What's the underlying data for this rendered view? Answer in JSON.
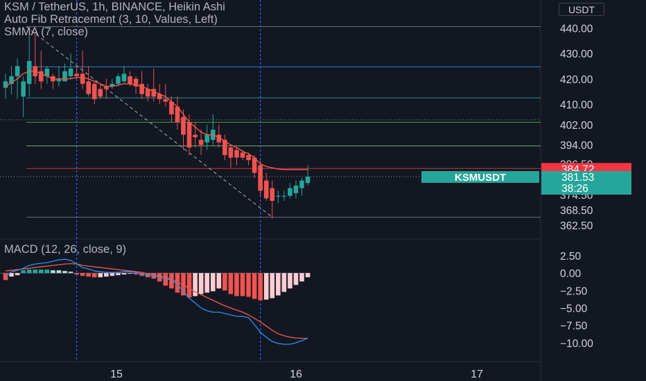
{
  "header": {
    "title": "KSM / TetherUS, 1h, BINANCE, Heikin Ashi",
    "fib_legend": "Auto Fib Retracement (3, 10, Values, Left)",
    "smma_legend": "SMMA (7, close)",
    "macd_legend": "MACD (12, 26, close, 9)",
    "currency": "USDT"
  },
  "colors": {
    "background": "#131722",
    "up": "#26a69a",
    "down": "#ef5350",
    "smma": "#f05a4a",
    "macd_line": "#2196f3",
    "signal_line": "#f05a4a",
    "hist_up_strong": "#26a69a",
    "hist_up_weak": "#b2dfdb",
    "hist_down_strong": "#ef5350",
    "hist_down_weak": "#ffcdd2"
  },
  "price_axis": {
    "labels": [
      "440.00",
      "430.00",
      "420.00",
      "410.00",
      "402.00",
      "394.00",
      "386.50",
      "374.50",
      "368.50",
      "362.50"
    ],
    "last_price_label": "381.53",
    "last_price_countdown": "38:26",
    "symbol_badge": "KSMUSDT",
    "level_label": "384.72"
  },
  "macd_axis": {
    "labels": [
      "2.50",
      "0.00",
      "−2.50",
      "−5.00",
      "−7.50",
      "−10.00"
    ]
  },
  "time_axis": {
    "labels": [
      "15",
      "16",
      "17"
    ]
  },
  "chart_data": [
    {
      "type": "candlestick",
      "title": "KSM / TetherUS, 1h, BINANCE, Heikin Ashi",
      "ylim": [
        360,
        442
      ],
      "candles": [
        [
          416.5,
          419,
          412,
          422,
          "up"
        ],
        [
          418,
          421,
          414,
          425,
          "up"
        ],
        [
          421,
          425,
          412,
          428,
          "up"
        ],
        [
          413,
          419,
          405,
          421,
          "up"
        ],
        [
          418,
          427,
          413,
          437,
          "up"
        ],
        [
          425,
          421,
          418,
          438,
          "down"
        ],
        [
          423,
          419,
          416,
          431,
          "down"
        ],
        [
          421,
          424,
          418,
          425,
          "up"
        ],
        [
          421,
          419,
          416,
          422,
          "down"
        ],
        [
          419,
          420,
          417,
          425,
          "up"
        ],
        [
          419,
          423,
          419,
          426,
          "up"
        ],
        [
          421,
          424,
          420,
          430,
          "up"
        ],
        [
          422,
          421,
          420,
          425,
          "down"
        ],
        [
          422,
          418,
          416,
          431,
          "down"
        ],
        [
          419,
          414,
          413,
          425,
          "down"
        ],
        [
          418,
          412,
          410,
          419,
          "down"
        ],
        [
          416,
          413,
          412,
          418,
          "down"
        ],
        [
          417,
          416,
          412,
          420,
          "down"
        ],
        [
          417,
          418,
          416,
          420,
          "up"
        ],
        [
          418,
          421,
          417,
          422,
          "up"
        ],
        [
          419,
          422,
          418,
          425,
          "up"
        ],
        [
          421,
          418,
          417,
          423,
          "down"
        ],
        [
          420,
          417,
          414,
          421,
          "down"
        ],
        [
          418,
          414,
          412,
          423,
          "down"
        ],
        [
          416,
          413,
          411,
          418,
          "down"
        ],
        [
          416,
          413,
          411,
          424,
          "down"
        ],
        [
          414,
          412,
          410,
          418,
          "down"
        ],
        [
          412,
          411,
          409,
          418,
          "down"
        ],
        [
          411,
          406,
          403,
          413,
          "down"
        ],
        [
          409,
          403,
          400,
          413,
          "down"
        ],
        [
          405,
          398,
          392,
          408,
          "down"
        ],
        [
          403,
          393,
          390,
          406,
          "down"
        ],
        [
          398,
          397,
          393,
          403,
          "down"
        ],
        [
          396,
          394,
          390,
          400,
          "down"
        ],
        [
          395,
          398,
          392,
          402,
          "up"
        ],
        [
          396,
          400,
          394,
          406,
          "up"
        ],
        [
          398,
          395,
          393,
          402,
          "down"
        ],
        [
          396,
          390,
          388,
          398,
          "down"
        ],
        [
          393,
          389,
          385,
          394,
          "down"
        ],
        [
          392,
          389,
          386,
          393,
          "down"
        ],
        [
          391,
          389,
          388,
          392,
          "down"
        ],
        [
          390,
          388,
          386,
          391,
          "down"
        ],
        [
          389,
          383,
          381,
          390,
          "down"
        ],
        [
          386,
          376,
          374,
          388,
          "down"
        ],
        [
          380,
          373,
          372,
          383,
          "down"
        ],
        [
          377,
          372,
          365,
          380,
          "down"
        ],
        [
          374,
          374,
          371,
          376,
          "up"
        ],
        [
          374,
          374,
          372,
          376,
          "up"
        ],
        [
          374,
          377,
          373,
          379,
          "up"
        ],
        [
          375,
          378,
          373,
          380,
          "up"
        ],
        [
          377,
          380,
          374,
          381,
          "up"
        ],
        [
          379,
          381.53,
          378,
          386,
          "up"
        ]
      ],
      "smma": [
        417,
        418.5,
        420,
        422,
        423,
        423,
        422,
        421,
        420,
        420,
        420,
        420,
        420.5,
        420.5,
        420,
        419,
        418,
        417,
        417,
        417.5,
        418,
        418,
        417.5,
        417,
        416,
        415,
        414,
        413,
        411,
        409,
        406,
        403,
        401,
        399,
        398,
        398,
        397,
        395.5,
        394,
        393,
        391.5,
        390.5,
        389,
        386.5,
        385.5,
        385,
        384.5,
        384.3,
        384.3,
        384.3,
        384.3,
        384.3
      ],
      "fib_levels": [
        440.5,
        424.7,
        412.5,
        402.9,
        393.6,
        384.72,
        365.6
      ],
      "fib_colors": [
        "#787b86",
        "#2196f3",
        "#26a69a",
        "#4caf50",
        "#81c784",
        "#f23645",
        "#787b86"
      ],
      "last_price": 381.53
    },
    {
      "type": "macd",
      "title": "MACD (12, 26, close, 9)",
      "ylim": [
        -11.5,
        3.2
      ],
      "macd": [
        -0.5,
        0.2,
        0.4,
        0.7,
        1.1,
        1.3,
        1.4,
        1.5,
        1.7,
        1.9,
        2.0,
        1.8,
        1.3,
        0.8,
        0.6,
        0.3,
        0.2,
        0.1,
        0.1,
        0.1,
        0.2,
        0.2,
        0.1,
        -0.2,
        -0.3,
        -0.4,
        -0.6,
        -0.8,
        -1.0,
        -1.6,
        -2.6,
        -3.6,
        -4.3,
        -5.0,
        -5.4,
        -5.6,
        -5.6,
        -5.8,
        -6.0,
        -6.2,
        -6.2,
        -6.4,
        -7.4,
        -8.5,
        -9.2,
        -9.8,
        -10.1,
        -10.2,
        -10.2,
        -10.0,
        -9.7,
        -9.3
      ],
      "signal": [
        0.3,
        0.4,
        0.5,
        0.6,
        0.7,
        0.8,
        0.9,
        1.0,
        1.1,
        1.2,
        1.3,
        1.35,
        1.3,
        1.1,
        1.0,
        0.9,
        0.8,
        0.7,
        0.6,
        0.5,
        0.4,
        0.3,
        0.2,
        0.1,
        -0.1,
        -0.2,
        -0.4,
        -0.6,
        -0.9,
        -1.3,
        -1.7,
        -2.2,
        -2.7,
        -3.1,
        -3.5,
        -3.9,
        -4.3,
        -4.7,
        -5.0,
        -5.3,
        -5.6,
        -6.0,
        -6.5,
        -7.0,
        -7.6,
        -8.2,
        -8.7,
        -9.0,
        -9.2,
        -9.3,
        -9.35,
        -9.35
      ],
      "hist": [
        -1.0,
        -0.5,
        -0.3,
        0.4,
        0.5,
        0.5,
        0.5,
        0.5,
        0.4,
        0.4,
        0.3,
        0.2,
        -0.2,
        -0.4,
        -0.5,
        -0.6,
        -0.6,
        -0.5,
        -0.4,
        -0.3,
        -0.2,
        -0.1,
        -0.2,
        -0.4,
        -0.6,
        -0.8,
        -1.2,
        -1.8,
        -2.2,
        -2.8,
        -3.2,
        -3.5,
        -3.3,
        -3.0,
        -2.8,
        -2.6,
        -2.2,
        -2.5,
        -3.0,
        -3.3,
        -3.3,
        -3.4,
        -3.7,
        -3.9,
        -3.8,
        -3.6,
        -3.2,
        -2.7,
        -2.2,
        -1.7,
        -1.2,
        -0.6
      ],
      "hist_colors": [
        "ds",
        "dw",
        "dw",
        "us",
        "us",
        "us",
        "us",
        "us",
        "uw",
        "uw",
        "uw",
        "uw",
        "ds",
        "ds",
        "ds",
        "ds",
        "dw",
        "dw",
        "dw",
        "dw",
        "dw",
        "dw",
        "ds",
        "ds",
        "ds",
        "ds",
        "ds",
        "ds",
        "ds",
        "ds",
        "ds",
        "ds",
        "dw",
        "dw",
        "dw",
        "dw",
        "dw",
        "ds",
        "ds",
        "ds",
        "ds",
        "ds",
        "ds",
        "ds",
        "dw",
        "dw",
        "dw",
        "dw",
        "dw",
        "dw",
        "dw",
        "dw"
      ]
    }
  ]
}
